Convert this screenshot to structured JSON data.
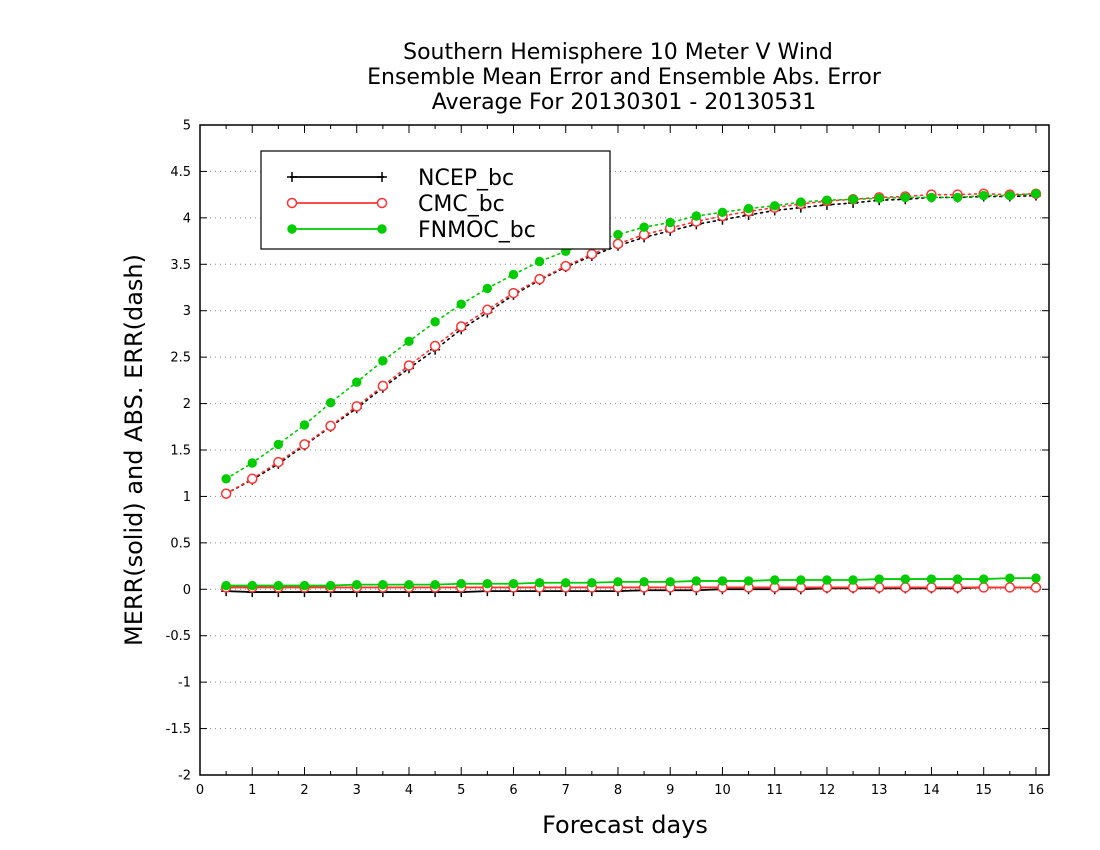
{
  "chart_data": {
    "type": "line",
    "title": [
      "Southern Hemisphere 10 Meter V Wind",
      "Ensemble Mean Error and Ensemble Abs. Error",
      "Average For 20130301 - 20130531"
    ],
    "xlabel": "Forecast days",
    "ylabel": "MERR(solid) and ABS. ERR(dash)",
    "xlim": [
      0,
      16.25
    ],
    "ylim": [
      -2,
      5
    ],
    "xticks": [
      0,
      1,
      2,
      3,
      4,
      5,
      6,
      7,
      8,
      9,
      10,
      11,
      12,
      13,
      14,
      15,
      16
    ],
    "yticks": [
      -2,
      -1.5,
      -1,
      -0.5,
      0,
      0.5,
      1,
      1.5,
      2,
      2.5,
      3,
      3.5,
      4,
      4.5,
      5
    ],
    "ytick_labels": [
      "-2",
      "-1.5",
      "-1",
      "-0.5",
      "0",
      "0.5",
      "1",
      "1.5",
      "2",
      "2.5",
      "3",
      "3.5",
      "4",
      "4.5",
      "5"
    ],
    "grid": "horizontal dotted",
    "legend_position": "top-left",
    "x": [
      0.5,
      1,
      1.5,
      2,
      2.5,
      3,
      3.5,
      4,
      4.5,
      5,
      5.5,
      6,
      6.5,
      7,
      7.5,
      8,
      8.5,
      9,
      9.5,
      10,
      10.5,
      11,
      11.5,
      12,
      12.5,
      13,
      13.5,
      14,
      14.5,
      15,
      15.5,
      16
    ],
    "series": [
      {
        "name": "NCEP_bc",
        "color": "#000000",
        "marker": "plus",
        "mean_error": [
          -0.02,
          -0.03,
          -0.03,
          -0.03,
          -0.03,
          -0.03,
          -0.03,
          -0.03,
          -0.03,
          -0.03,
          -0.02,
          -0.02,
          -0.02,
          -0.02,
          -0.02,
          -0.02,
          -0.01,
          -0.01,
          -0.01,
          0.0,
          0.0,
          0.0,
          0.0,
          0.01,
          0.01,
          0.01,
          0.01,
          0.01,
          0.01,
          0.02,
          0.02,
          0.02
        ],
        "abs_error": [
          1.03,
          1.18,
          1.35,
          1.55,
          1.75,
          1.95,
          2.17,
          2.38,
          2.58,
          2.8,
          2.98,
          3.17,
          3.33,
          3.47,
          3.59,
          3.7,
          3.79,
          3.86,
          3.93,
          3.98,
          4.03,
          4.08,
          4.11,
          4.14,
          4.16,
          4.19,
          4.2,
          4.22,
          4.22,
          4.23,
          4.23,
          4.24
        ]
      },
      {
        "name": "CMC_bc",
        "color": "#ff3333",
        "marker": "open-circle",
        "mean_error": [
          0.02,
          0.02,
          0.02,
          0.02,
          0.02,
          0.02,
          0.02,
          0.02,
          0.02,
          0.02,
          0.02,
          0.02,
          0.02,
          0.02,
          0.02,
          0.02,
          0.02,
          0.02,
          0.02,
          0.02,
          0.02,
          0.02,
          0.02,
          0.02,
          0.02,
          0.02,
          0.02,
          0.02,
          0.02,
          0.02,
          0.02,
          0.02
        ],
        "abs_error": [
          1.03,
          1.19,
          1.37,
          1.56,
          1.76,
          1.97,
          2.19,
          2.41,
          2.62,
          2.83,
          3.01,
          3.19,
          3.34,
          3.48,
          3.61,
          3.72,
          3.82,
          3.89,
          3.96,
          4.02,
          4.07,
          4.11,
          4.15,
          4.18,
          4.2,
          4.22,
          4.23,
          4.25,
          4.25,
          4.26,
          4.25,
          4.26
        ]
      },
      {
        "name": "FNMOC_bc",
        "color": "#00cc00",
        "marker": "filled-circle",
        "mean_error": [
          0.04,
          0.04,
          0.04,
          0.04,
          0.04,
          0.05,
          0.05,
          0.05,
          0.05,
          0.06,
          0.06,
          0.06,
          0.07,
          0.07,
          0.07,
          0.08,
          0.08,
          0.08,
          0.09,
          0.09,
          0.09,
          0.1,
          0.1,
          0.1,
          0.1,
          0.11,
          0.11,
          0.11,
          0.11,
          0.11,
          0.12,
          0.12
        ],
        "abs_error": [
          1.19,
          1.36,
          1.56,
          1.77,
          2.01,
          2.23,
          2.46,
          2.67,
          2.88,
          3.07,
          3.24,
          3.39,
          3.53,
          3.64,
          3.74,
          3.82,
          3.9,
          3.95,
          4.02,
          4.06,
          4.1,
          4.13,
          4.17,
          4.19,
          4.2,
          4.21,
          4.22,
          4.22,
          4.22,
          4.24,
          4.24,
          4.26
        ]
      }
    ]
  }
}
